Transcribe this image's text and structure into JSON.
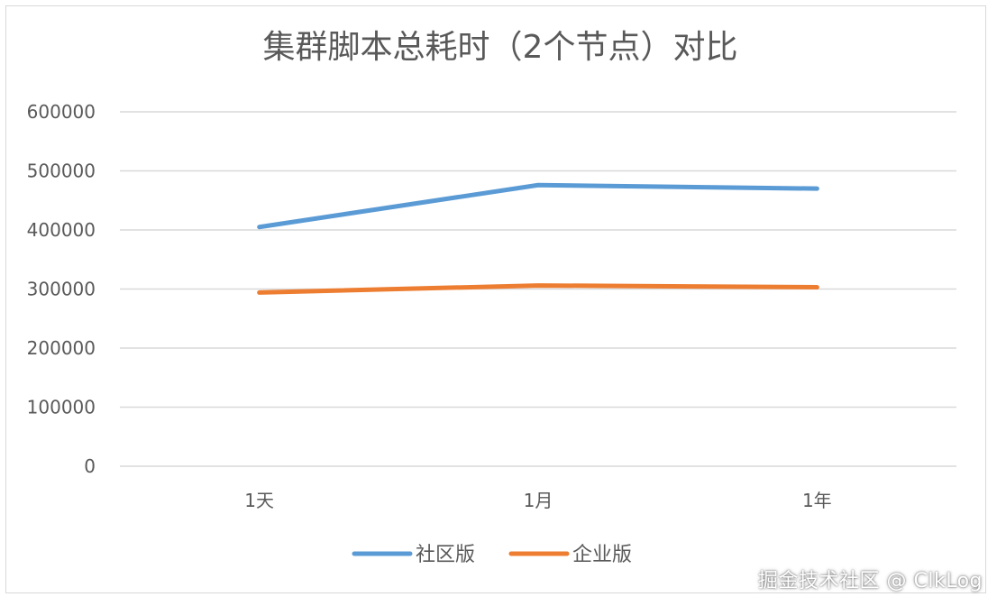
{
  "chart_data": {
    "type": "line",
    "title": "集群脚本总耗时（2个节点）对比",
    "categories": [
      "1天",
      "1月",
      "1年"
    ],
    "series": [
      {
        "name": "社区版",
        "color": "#5b9bd5",
        "values": [
          405000,
          476000,
          470000
        ]
      },
      {
        "name": "企业版",
        "color": "#ed7d31",
        "values": [
          294000,
          306000,
          303000
        ]
      }
    ],
    "yticks": [
      "0",
      "100000",
      "200000",
      "300000",
      "400000",
      "500000",
      "600000"
    ],
    "ylim": [
      0,
      600000
    ],
    "grid": true,
    "legend_position": "bottom"
  },
  "watermark": "掘金技术社区 @ ClkLog"
}
